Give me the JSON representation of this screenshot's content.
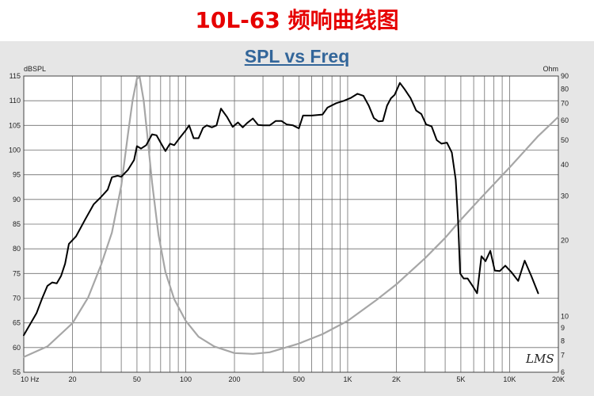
{
  "banner": {
    "title": "10L-63   频响曲线图"
  },
  "signature": "LMS",
  "chart_data": {
    "type": "line",
    "title": "SPL vs Freq",
    "y_unit_left": "dBSPL",
    "y_unit_right": "Ohm",
    "x_scale": "log",
    "xlim": [
      10,
      20000
    ],
    "ylim": [
      55,
      115
    ],
    "y2lim": [
      6,
      90
    ],
    "y2_scale": "log",
    "grid": true,
    "x_ticks": [
      {
        "v": 10,
        "label": "10 Hz"
      },
      {
        "v": 20,
        "label": "20"
      },
      {
        "v": 50,
        "label": "50"
      },
      {
        "v": 100,
        "label": "100"
      },
      {
        "v": 200,
        "label": "200"
      },
      {
        "v": 500,
        "label": "500"
      },
      {
        "v": 1000,
        "label": "1K"
      },
      {
        "v": 2000,
        "label": "2K"
      },
      {
        "v": 5000,
        "label": "5K"
      },
      {
        "v": 10000,
        "label": "10K"
      },
      {
        "v": 20000,
        "label": "20K"
      }
    ],
    "y_ticks": [
      55,
      60,
      65,
      70,
      75,
      80,
      85,
      90,
      95,
      100,
      105,
      110,
      115
    ],
    "y2_ticks": [
      6,
      7,
      8,
      9,
      10,
      20,
      30,
      40,
      50,
      60,
      70,
      80,
      90
    ],
    "series": [
      {
        "axis": "left",
        "color": "#000000",
        "points": [
          [
            10,
            62.5
          ],
          [
            12,
            67
          ],
          [
            13,
            70
          ],
          [
            14,
            72.5
          ],
          [
            15,
            73.2
          ],
          [
            16,
            73
          ],
          [
            17,
            74.5
          ],
          [
            18,
            77
          ],
          [
            19,
            81
          ],
          [
            21,
            82.5
          ],
          [
            24,
            86
          ],
          [
            27,
            89
          ],
          [
            30,
            90.5
          ],
          [
            33,
            92
          ],
          [
            35,
            94.5
          ],
          [
            38,
            94.8
          ],
          [
            40,
            94.6
          ],
          [
            44,
            96
          ],
          [
            48,
            98
          ],
          [
            50,
            100.8
          ],
          [
            53,
            100.3
          ],
          [
            57,
            101
          ],
          [
            62,
            103.2
          ],
          [
            66,
            103
          ],
          [
            70,
            101.5
          ],
          [
            75,
            99.8
          ],
          [
            80,
            101.3
          ],
          [
            85,
            101
          ],
          [
            92,
            102.5
          ],
          [
            100,
            104
          ],
          [
            105,
            105
          ],
          [
            112,
            102.4
          ],
          [
            120,
            102.4
          ],
          [
            128,
            104.5
          ],
          [
            135,
            105
          ],
          [
            145,
            104.6
          ],
          [
            155,
            105
          ],
          [
            165,
            108.4
          ],
          [
            180,
            106.7
          ],
          [
            195,
            104.7
          ],
          [
            210,
            105.6
          ],
          [
            225,
            104.6
          ],
          [
            240,
            105.5
          ],
          [
            260,
            106.4
          ],
          [
            280,
            105.1
          ],
          [
            300,
            105
          ],
          [
            330,
            105
          ],
          [
            360,
            105.9
          ],
          [
            390,
            105.9
          ],
          [
            420,
            105.2
          ],
          [
            460,
            105
          ],
          [
            500,
            104.4
          ],
          [
            530,
            107
          ],
          [
            600,
            107
          ],
          [
            700,
            107.2
          ],
          [
            750,
            108.6
          ],
          [
            850,
            109.5
          ],
          [
            950,
            110
          ],
          [
            1050,
            110.6
          ],
          [
            1150,
            111.4
          ],
          [
            1250,
            111
          ],
          [
            1350,
            109
          ],
          [
            1450,
            106.5
          ],
          [
            1550,
            105.8
          ],
          [
            1650,
            105.9
          ],
          [
            1750,
            109
          ],
          [
            1850,
            110.5
          ],
          [
            1950,
            111.2
          ],
          [
            2100,
            113.6
          ],
          [
            2250,
            112.3
          ],
          [
            2450,
            110.5
          ],
          [
            2650,
            108
          ],
          [
            2850,
            107.3
          ],
          [
            3050,
            105.2
          ],
          [
            3300,
            104.8
          ],
          [
            3550,
            102
          ],
          [
            3800,
            101.3
          ],
          [
            4100,
            101.5
          ],
          [
            4400,
            99.5
          ],
          [
            4650,
            94
          ],
          [
            4800,
            86
          ],
          [
            4950,
            75
          ],
          [
            5200,
            74
          ],
          [
            5500,
            74
          ],
          [
            5900,
            72.5
          ],
          [
            6300,
            71
          ],
          [
            6700,
            78.5
          ],
          [
            7100,
            77.5
          ],
          [
            7600,
            79.6
          ],
          [
            8100,
            75.6
          ],
          [
            8700,
            75.5
          ],
          [
            9400,
            76.6
          ],
          [
            10300,
            75.2
          ],
          [
            11300,
            73.5
          ],
          [
            12400,
            77.6
          ],
          [
            13600,
            74.5
          ],
          [
            15000,
            71
          ]
        ]
      },
      {
        "axis": "right",
        "color": "#a6a6a6",
        "points": [
          [
            10,
            6.9
          ],
          [
            14,
            7.6
          ],
          [
            20,
            9.4
          ],
          [
            25,
            11.9
          ],
          [
            30,
            16
          ],
          [
            35,
            21.5
          ],
          [
            40,
            33
          ],
          [
            44,
            53
          ],
          [
            47,
            72
          ],
          [
            50,
            88
          ],
          [
            52,
            89
          ],
          [
            55,
            72
          ],
          [
            58,
            52
          ],
          [
            62,
            34
          ],
          [
            68,
            21
          ],
          [
            75,
            15
          ],
          [
            85,
            11.7
          ],
          [
            100,
            9.6
          ],
          [
            120,
            8.3
          ],
          [
            150,
            7.6
          ],
          [
            200,
            7.15
          ],
          [
            260,
            7.1
          ],
          [
            330,
            7.2
          ],
          [
            500,
            7.8
          ],
          [
            700,
            8.5
          ],
          [
            1000,
            9.6
          ],
          [
            1500,
            11.6
          ],
          [
            2000,
            13.4
          ],
          [
            3000,
            17
          ],
          [
            4000,
            20.5
          ],
          [
            5000,
            24.2
          ],
          [
            6000,
            27.5
          ],
          [
            7000,
            30.6
          ],
          [
            10000,
            39
          ],
          [
            15000,
            52
          ],
          [
            20000,
            62
          ]
        ]
      }
    ]
  }
}
